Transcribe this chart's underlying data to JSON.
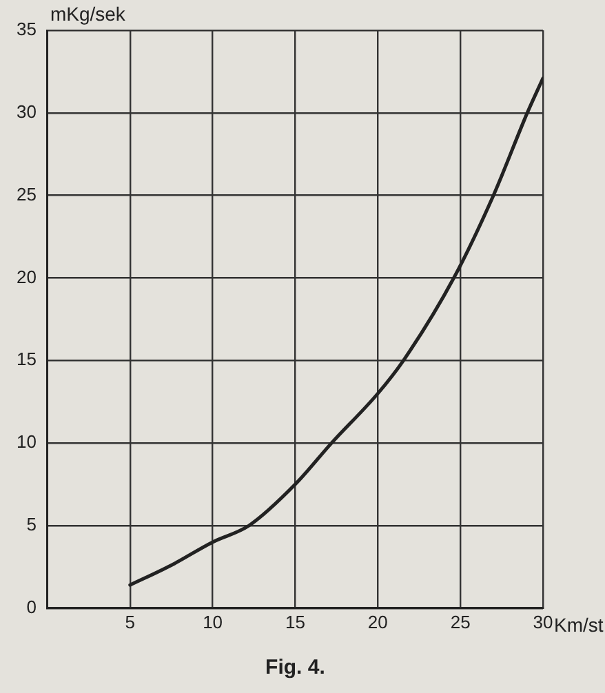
{
  "chart_data": {
    "type": "line",
    "xlabel": "Km/st",
    "ylabel": "mKg/sek",
    "annotations": [
      "Fig. 4."
    ],
    "x": [
      5,
      7.5,
      10,
      12.2,
      15,
      17.2,
      20,
      21.55,
      24.6,
      27,
      29.05,
      30
    ],
    "series": [
      {
        "color": "#222222",
        "values": [
          1.4,
          2.6,
          4.0,
          5,
          7.5,
          10,
          13,
          15,
          20,
          25,
          30,
          32.1
        ]
      }
    ],
    "xlim": [
      0,
      30
    ],
    "xticks": [
      5,
      10,
      15,
      20,
      25,
      30
    ],
    "ylim": [
      0,
      35
    ],
    "yticks": [
      0,
      5,
      10,
      15,
      20,
      25,
      30,
      35
    ],
    "grid": true,
    "legend": false,
    "marker": "none",
    "line_style": "solid"
  }
}
